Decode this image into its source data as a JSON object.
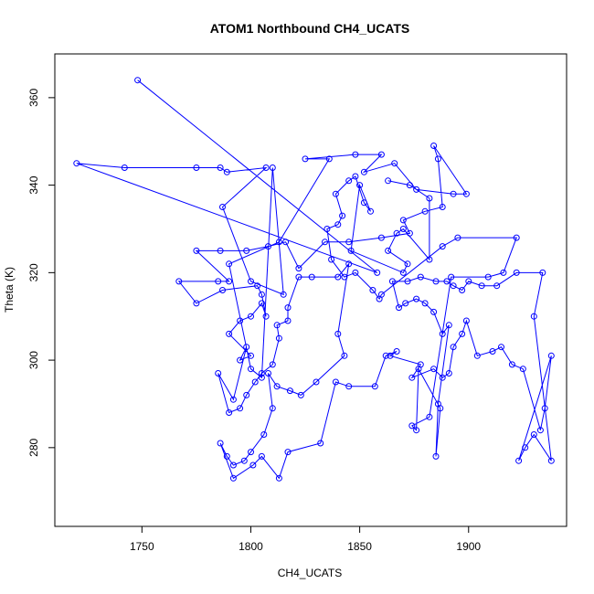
{
  "chart_data": {
    "type": "scatter",
    "title": "ATOM1 Northbound CH4_UCATS",
    "xlabel": "CH4_UCATS",
    "ylabel": "Theta (K)",
    "xlim": [
      1710,
      1945
    ],
    "ylim": [
      262,
      370
    ],
    "xticks": [
      1750,
      1800,
      1850,
      1900
    ],
    "yticks": [
      280,
      300,
      320,
      340,
      360
    ],
    "grid": false,
    "series": [
      {
        "color": "#0000ff",
        "points": [
          [
            1748,
            364
          ],
          [
            1858,
            320
          ],
          [
            1720,
            345
          ],
          [
            1742,
            344
          ],
          [
            1775,
            344
          ],
          [
            1786,
            344
          ],
          [
            1789,
            343
          ],
          [
            1807,
            344
          ],
          [
            1787,
            335
          ],
          [
            1800,
            318
          ],
          [
            1815,
            315
          ],
          [
            1810,
            344
          ],
          [
            1805,
            296
          ],
          [
            1800,
            298
          ],
          [
            1790,
            322
          ],
          [
            1813,
            327
          ],
          [
            1836,
            346
          ],
          [
            1825,
            346
          ],
          [
            1848,
            347
          ],
          [
            1860,
            347
          ],
          [
            1852,
            343
          ],
          [
            1866,
            345
          ],
          [
            1876,
            339
          ],
          [
            1893,
            338
          ],
          [
            1899,
            338
          ],
          [
            1884,
            349
          ],
          [
            1886,
            346
          ],
          [
            1888,
            335
          ],
          [
            1880,
            334
          ],
          [
            1870,
            332
          ],
          [
            1873,
            329
          ],
          [
            1860,
            328
          ],
          [
            1845,
            327
          ],
          [
            1834,
            327
          ],
          [
            1822,
            321
          ],
          [
            1816,
            327
          ],
          [
            1808,
            326
          ],
          [
            1798,
            325
          ],
          [
            1786,
            325
          ],
          [
            1775,
            325
          ],
          [
            1790,
            318
          ],
          [
            1785,
            318
          ],
          [
            1767,
            318
          ],
          [
            1775,
            313
          ],
          [
            1787,
            316
          ],
          [
            1803,
            317
          ],
          [
            1805,
            315
          ],
          [
            1807,
            310
          ],
          [
            1805,
            313
          ],
          [
            1800,
            310
          ],
          [
            1795,
            309
          ],
          [
            1790,
            306
          ],
          [
            1800,
            301
          ],
          [
            1795,
            300
          ],
          [
            1798,
            303
          ],
          [
            1792,
            291
          ],
          [
            1785,
            297
          ],
          [
            1790,
            288
          ],
          [
            1795,
            289
          ],
          [
            1798,
            292
          ],
          [
            1802,
            295
          ],
          [
            1805,
            297
          ],
          [
            1810,
            299
          ],
          [
            1813,
            305
          ],
          [
            1812,
            308
          ],
          [
            1817,
            309
          ],
          [
            1817,
            312
          ],
          [
            1822,
            319
          ],
          [
            1828,
            319
          ],
          [
            1840,
            319
          ],
          [
            1845,
            322
          ],
          [
            1840,
            306
          ],
          [
            1843,
            301
          ],
          [
            1830,
            295
          ],
          [
            1823,
            292
          ],
          [
            1818,
            293
          ],
          [
            1812,
            294
          ],
          [
            1808,
            297
          ],
          [
            1810,
            289
          ],
          [
            1806,
            283
          ],
          [
            1800,
            279
          ],
          [
            1797,
            277
          ],
          [
            1792,
            276
          ],
          [
            1789,
            278
          ],
          [
            1786,
            281
          ],
          [
            1792,
            273
          ],
          [
            1801,
            276
          ],
          [
            1805,
            278
          ],
          [
            1813,
            273
          ],
          [
            1817,
            279
          ],
          [
            1832,
            281
          ],
          [
            1839,
            295
          ],
          [
            1845,
            294
          ],
          [
            1857,
            294
          ],
          [
            1862,
            301
          ],
          [
            1867,
            302
          ],
          [
            1864,
            301
          ],
          [
            1878,
            299
          ],
          [
            1874,
            296
          ],
          [
            1884,
            298
          ],
          [
            1888,
            296
          ],
          [
            1891,
            297
          ],
          [
            1893,
            303
          ],
          [
            1897,
            306
          ],
          [
            1899,
            309
          ],
          [
            1904,
            301
          ],
          [
            1911,
            302
          ],
          [
            1915,
            303
          ],
          [
            1920,
            299
          ],
          [
            1925,
            298
          ],
          [
            1933,
            284
          ],
          [
            1935,
            289
          ],
          [
            1938,
            301
          ],
          [
            1923,
            277
          ],
          [
            1926,
            280
          ],
          [
            1930,
            283
          ],
          [
            1938,
            277
          ],
          [
            1930,
            310
          ],
          [
            1934,
            320
          ],
          [
            1922,
            320
          ],
          [
            1913,
            317
          ],
          [
            1906,
            317
          ],
          [
            1900,
            318
          ],
          [
            1897,
            316
          ],
          [
            1893,
            317
          ],
          [
            1890,
            318
          ],
          [
            1885,
            318
          ],
          [
            1878,
            319
          ],
          [
            1872,
            318
          ],
          [
            1865,
            318
          ],
          [
            1868,
            312
          ],
          [
            1871,
            313
          ],
          [
            1876,
            314
          ],
          [
            1880,
            313
          ],
          [
            1884,
            311
          ],
          [
            1888,
            306
          ],
          [
            1891,
            308
          ],
          [
            1886,
            290
          ],
          [
            1885,
            278
          ],
          [
            1887,
            289
          ],
          [
            1877,
            298
          ],
          [
            1876,
            284
          ],
          [
            1874,
            285
          ],
          [
            1882,
            287
          ],
          [
            1892,
            319
          ],
          [
            1909,
            319
          ],
          [
            1916,
            320
          ],
          [
            1922,
            328
          ],
          [
            1895,
            328
          ],
          [
            1888,
            326
          ],
          [
            1860,
            315
          ],
          [
            1859,
            314
          ],
          [
            1856,
            316
          ],
          [
            1848,
            320
          ],
          [
            1843,
            319
          ],
          [
            1837,
            323
          ],
          [
            1835,
            330
          ],
          [
            1840,
            331
          ],
          [
            1842,
            333
          ],
          [
            1839,
            338
          ],
          [
            1845,
            341
          ],
          [
            1848,
            342
          ],
          [
            1852,
            336
          ],
          [
            1855,
            334
          ],
          [
            1850,
            340
          ],
          [
            1846,
            325
          ],
          [
            1870,
            320
          ],
          [
            1872,
            322
          ],
          [
            1863,
            325
          ],
          [
            1867,
            329
          ],
          [
            1870,
            330
          ],
          [
            1882,
            323
          ],
          [
            1882,
            337
          ],
          [
            1873,
            340
          ],
          [
            1863,
            341
          ]
        ]
      }
    ]
  }
}
